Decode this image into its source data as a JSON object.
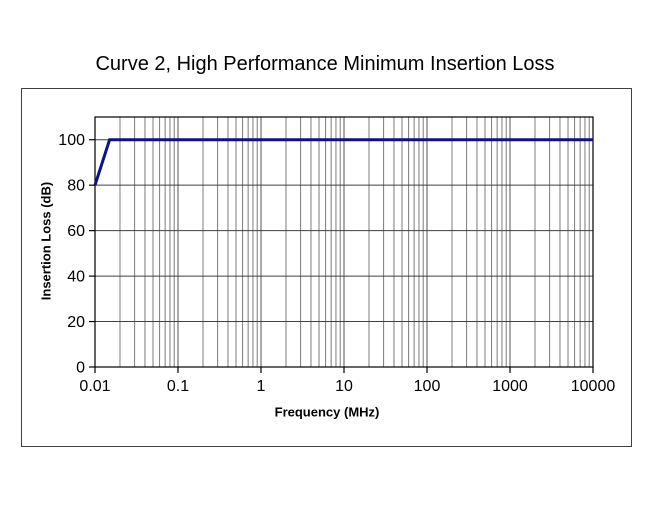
{
  "chart": {
    "title": "Curve 2, High Performance Minimum Insertion Loss",
    "xlabel": "Frequency (MHz)",
    "ylabel": "Insertion Loss (dB)"
  },
  "chart_data": {
    "type": "line",
    "title": "Curve 2, High Performance Minimum Insertion Loss",
    "xlabel": "Frequency (MHz)",
    "ylabel": "Insertion Loss (dB)",
    "x_scale": "log",
    "xlim": [
      0.01,
      10000
    ],
    "ylim": [
      0,
      110
    ],
    "x_ticks": [
      0.01,
      0.1,
      1,
      10,
      100,
      1000,
      10000
    ],
    "x_tick_labels": [
      "0.01",
      "0.1",
      "1",
      "10",
      "100",
      "1000",
      "10000"
    ],
    "y_ticks": [
      0,
      20,
      40,
      60,
      80,
      100
    ],
    "y_tick_labels": [
      "0",
      "20",
      "40",
      "60",
      "80",
      "100"
    ],
    "grid": {
      "horizontal_major": true,
      "vertical_major": true,
      "vertical_minor_log": true
    },
    "legend": "none",
    "series": [
      {
        "name": "Curve 2",
        "color": "#10108c",
        "points": [
          [
            0.01,
            80
          ],
          [
            0.015,
            100
          ],
          [
            10000,
            100
          ]
        ]
      }
    ],
    "colors": {
      "background": "#ffffff",
      "frame": "#404040",
      "plot_border": "#000000",
      "grid_major_h": "#3f3f3f",
      "grid_major_v": "#565656",
      "grid_minor_v": "#7c7c7c",
      "tick": "#000000",
      "text": "#000000"
    }
  }
}
